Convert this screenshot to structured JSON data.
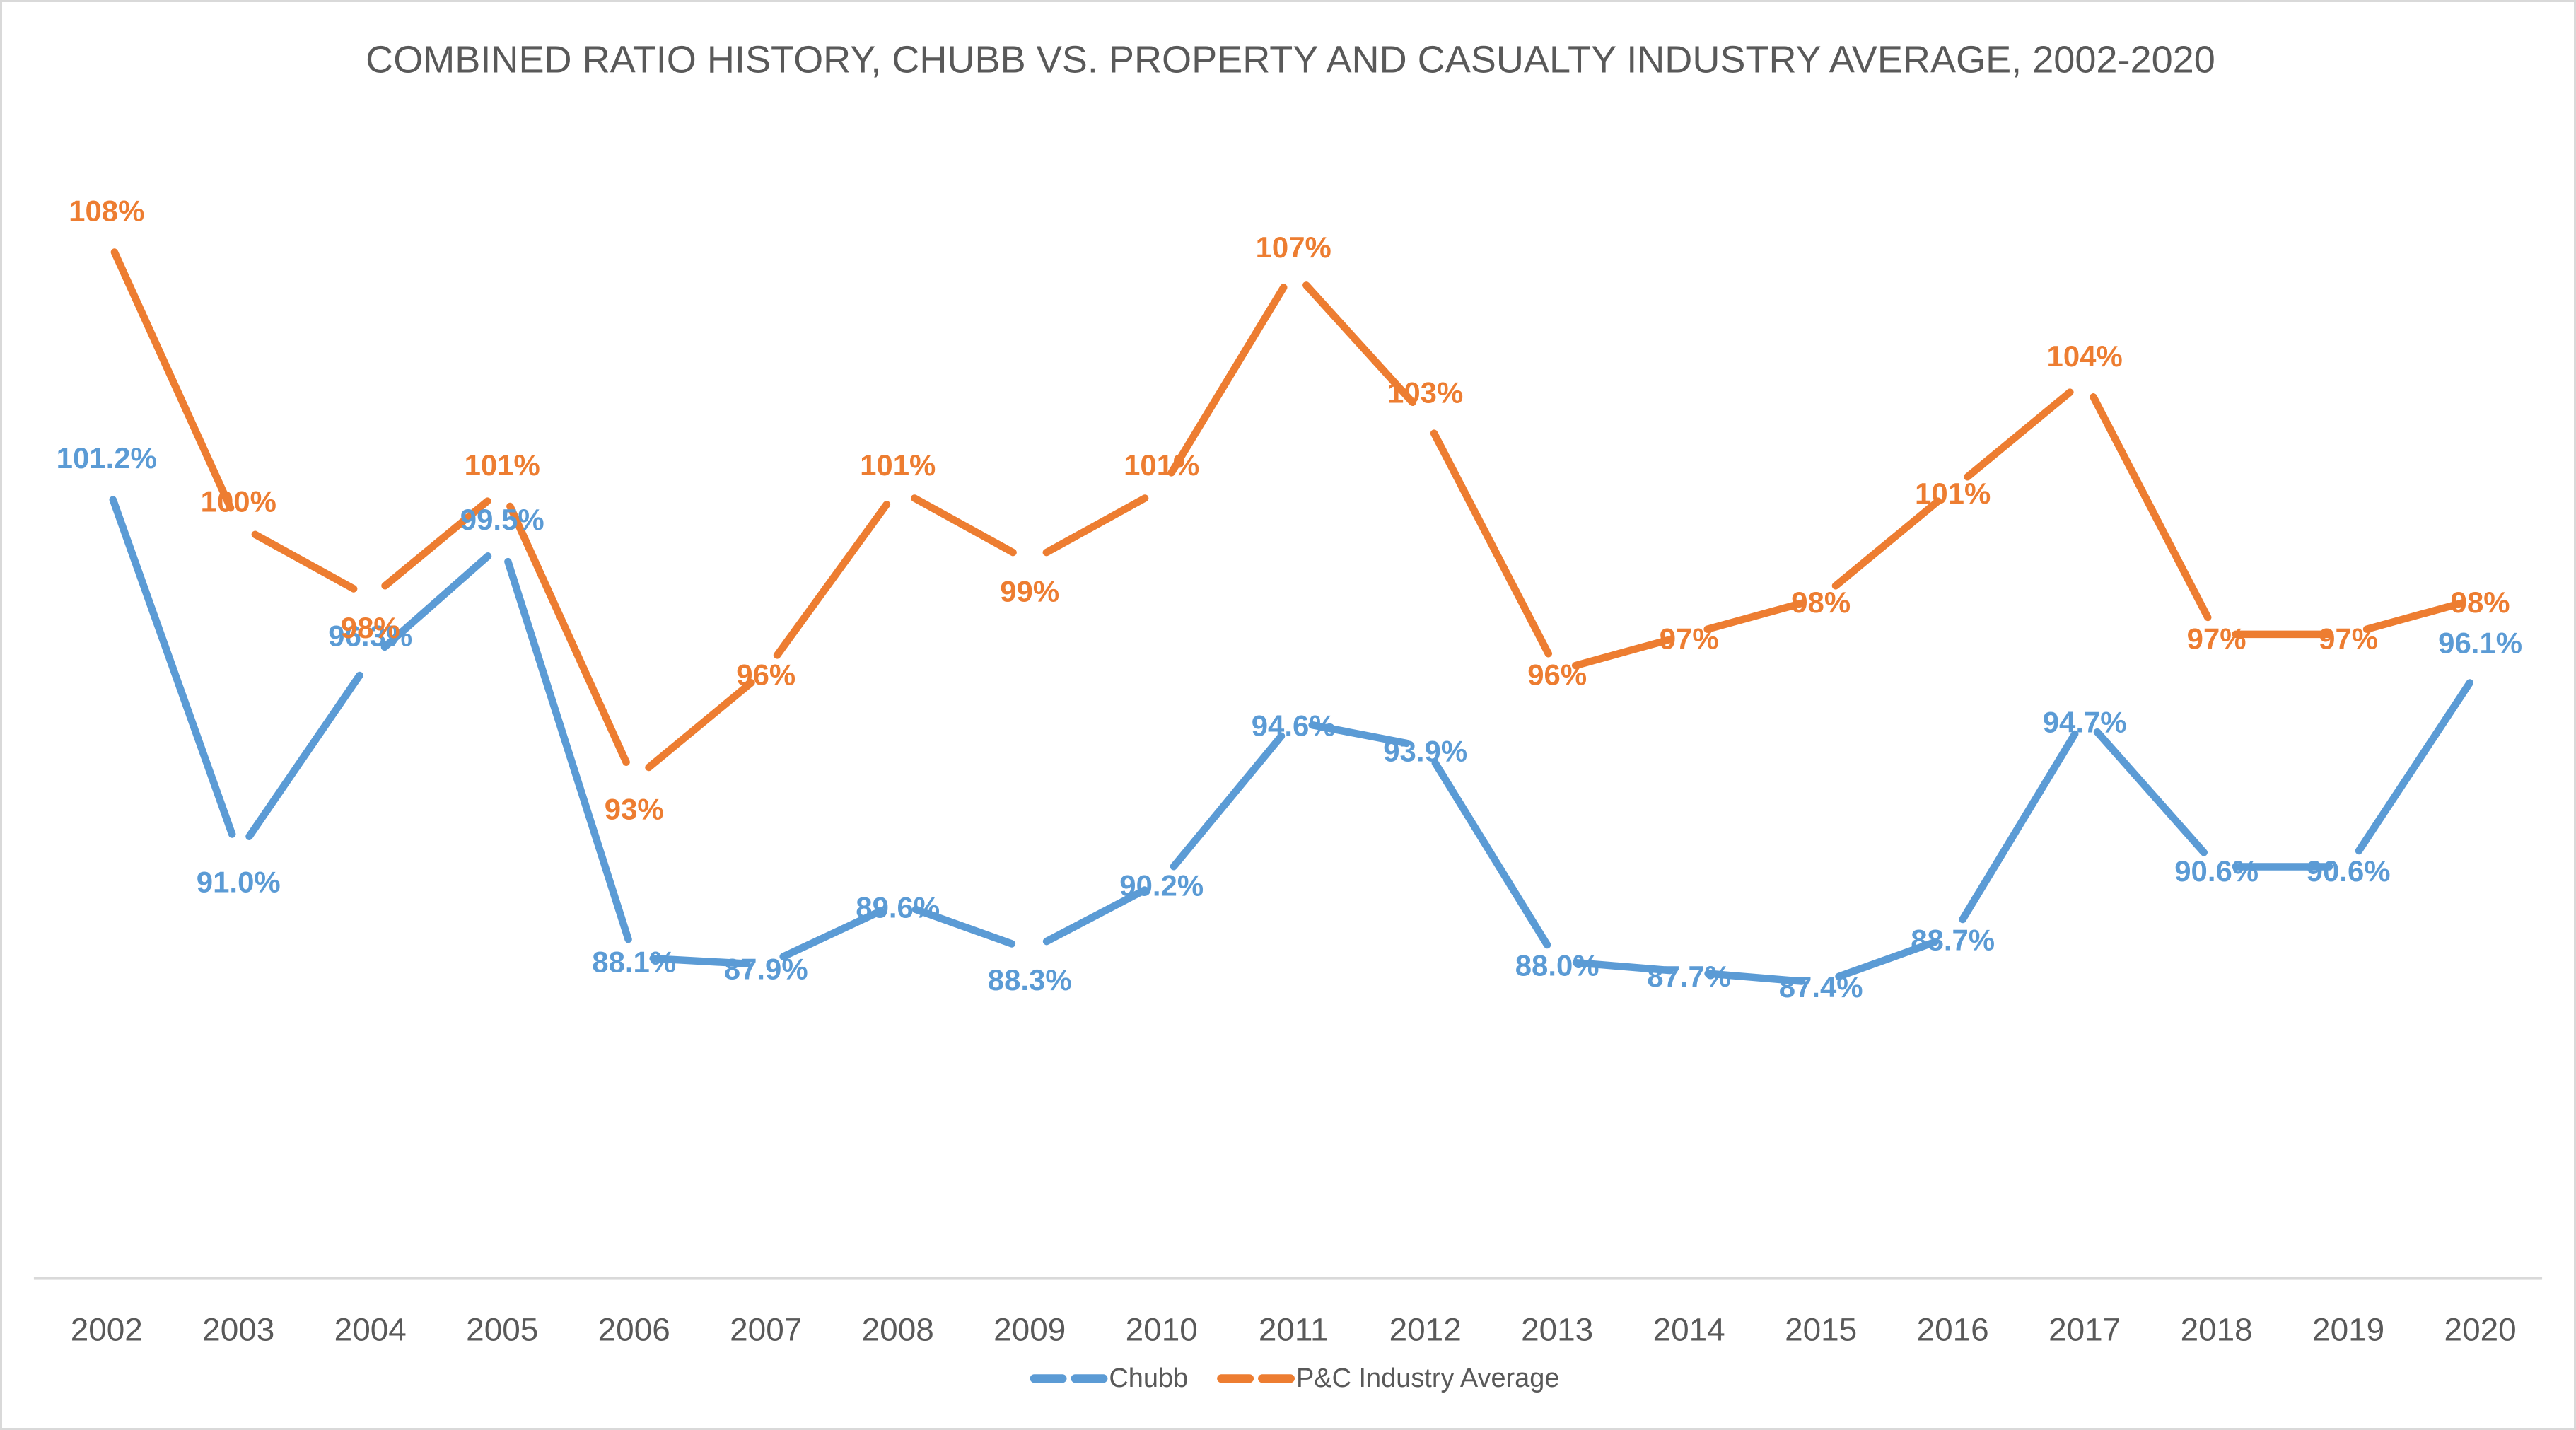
{
  "chart_data": {
    "type": "line",
    "title": "COMBINED RATIO HISTORY, CHUBB VS. PROPERTY AND CASUALTY INDUSTRY AVERAGE, 2002-2020",
    "categories": [
      "2002",
      "2003",
      "2004",
      "2005",
      "2006",
      "2007",
      "2008",
      "2009",
      "2010",
      "2011",
      "2012",
      "2013",
      "2014",
      "2015",
      "2016",
      "2017",
      "2018",
      "2019",
      "2020"
    ],
    "series": [
      {
        "name": "Chubb",
        "color": "#5B9BD5",
        "values": [
          101.2,
          91.0,
          96.3,
          99.5,
          88.1,
          87.9,
          89.6,
          88.3,
          90.2,
          94.6,
          93.9,
          88.0,
          87.7,
          87.4,
          88.7,
          94.7,
          90.6,
          90.6,
          96.1
        ],
        "labels": [
          "101.2%",
          "91.0%",
          "96.3%",
          "99.5%",
          "88.1%",
          "87.9%",
          "89.6%",
          "88.3%",
          "90.2%",
          "94.6%",
          "93.9%",
          "88.0%",
          "87.7%",
          "87.4%",
          "88.7%",
          "94.7%",
          "90.6%",
          "90.6%",
          "96.1%"
        ],
        "label_pos": [
          "above",
          "below",
          "above",
          "above",
          "center",
          "center",
          "center",
          "below",
          "center",
          "center",
          "center",
          "center",
          "center",
          "center",
          "center",
          "center",
          "center",
          "center",
          "above"
        ]
      },
      {
        "name": "P&C Industry Average",
        "color": "#ED7D31",
        "values": [
          108,
          100,
          98,
          101,
          93,
          96,
          101,
          99,
          101,
          107,
          103,
          96,
          97,
          98,
          101,
          104,
          97,
          97,
          98
        ],
        "labels": [
          "108%",
          "100%",
          "98%",
          "101%",
          "93%",
          "96%",
          "101%",
          "99%",
          "101%",
          "107%",
          "103%",
          "96%",
          "97%",
          "98%",
          "101%",
          "104%",
          "97%",
          "97%",
          "98%"
        ],
        "label_pos": [
          "above",
          "above",
          "below",
          "above",
          "below",
          "center",
          "above",
          "below",
          "above",
          "above",
          "above",
          "center",
          "center",
          "center",
          "center",
          "above",
          "center",
          "center",
          "center"
        ]
      }
    ],
    "xlabel": "",
    "ylabel": "",
    "y_axis_visible": false,
    "gridlines": false,
    "legend_position": "bottom",
    "text_color": "#595959",
    "axis_color": "#D9D9D9"
  }
}
